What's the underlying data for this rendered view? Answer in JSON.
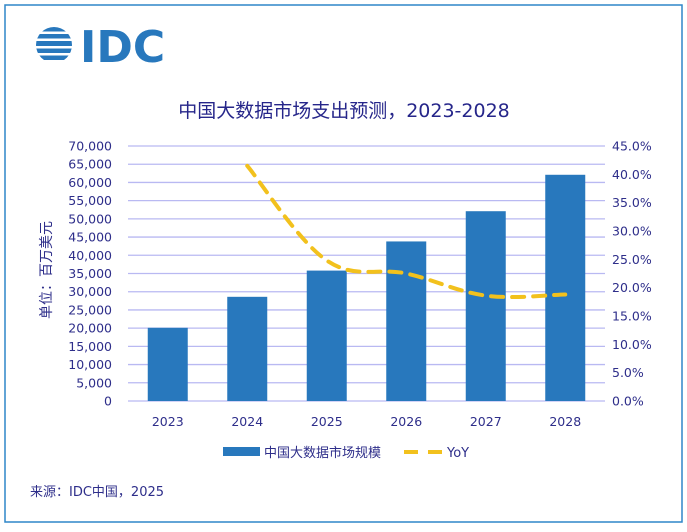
{
  "logo": {
    "text": "IDC",
    "color": "#2878bd"
  },
  "footer": {
    "source": "来源：IDC中国，2025"
  },
  "chart_data": {
    "type": "bar+line",
    "title": "中国大数据市场支出预测，2023-2028",
    "ylabel": "单位：百万美元",
    "xlabel": "",
    "categories": [
      "2023",
      "2024",
      "2025",
      "2026",
      "2027",
      "2028"
    ],
    "series": [
      {
        "name": "中国大数据市场规模",
        "type": "bar",
        "axis": "left",
        "color": "#2878bd",
        "values": [
          20100,
          28600,
          35800,
          43800,
          52100,
          62100
        ]
      },
      {
        "name": "YoY",
        "type": "line",
        "style": "dashed",
        "axis": "right",
        "color": "#f2c11d",
        "values": [
          null,
          41.5,
          24.8,
          22.5,
          18.6,
          18.8
        ]
      }
    ],
    "ylim": [
      0,
      70000
    ],
    "yticks": [
      "0",
      "5,000",
      "10,000",
      "15,000",
      "20,000",
      "25,000",
      "30,000",
      "35,000",
      "40,000",
      "45,000",
      "50,000",
      "55,000",
      "60,000",
      "65,000",
      "70,000"
    ],
    "y2lim": [
      0,
      45
    ],
    "y2ticks": [
      "0.0%",
      "5.0%",
      "10.0%",
      "15.0%",
      "20.0%",
      "25.0%",
      "30.0%",
      "35.0%",
      "40.0%",
      "45.0%"
    ],
    "grid": true,
    "legend": "bottom"
  }
}
